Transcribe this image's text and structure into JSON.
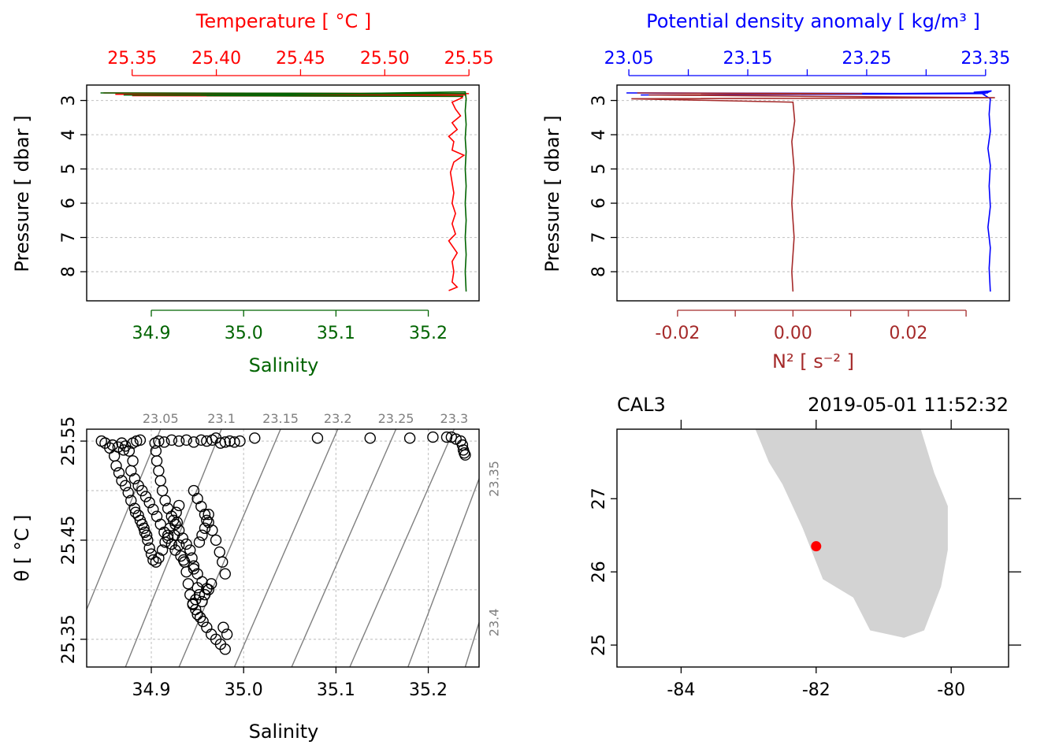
{
  "colors": {
    "temperature": "#ff0000",
    "salinity": "#006400",
    "density": "#0000ff",
    "n2": "#a52a2a",
    "axis": "#000000",
    "grid": "#c8c8c8",
    "isopycnal": "#7f7f7f",
    "land": "#d3d3d3",
    "station": "#ff0000"
  },
  "chart_data": [
    {
      "type": "line",
      "panel": "profile-ts",
      "title": "",
      "ylabel": "Pressure [ dbar ]",
      "ylim": [
        8.85,
        2.55
      ],
      "yticks": [
        3,
        4,
        5,
        6,
        7,
        8
      ],
      "grid": true,
      "top_axis": {
        "label": "Temperature [ °C ]",
        "ticks": [
          "25.35",
          "25.40",
          "25.45",
          "25.50",
          "25.55"
        ],
        "tick_values": [
          25.35,
          25.4,
          25.45,
          25.5,
          25.55
        ],
        "range": [
          25.323,
          25.556
        ]
      },
      "bottom_axis": {
        "label": "Salinity",
        "ticks": [
          "34.9",
          "35.0",
          "35.1",
          "35.2"
        ],
        "tick_values": [
          34.9,
          35.0,
          35.1,
          35.2
        ],
        "range": [
          34.83,
          35.255
        ]
      },
      "series": [
        {
          "variable": "temperature",
          "axis": "top",
          "points": [
            [
              25.333,
              2.78
            ],
            [
              25.55,
              2.8
            ],
            [
              25.34,
              2.82
            ],
            [
              25.548,
              2.84
            ],
            [
              25.35,
              2.86
            ],
            [
              25.545,
              2.88
            ],
            [
              25.546,
              2.92
            ],
            [
              25.54,
              3.05
            ],
            [
              25.542,
              3.25
            ],
            [
              25.545,
              3.45
            ],
            [
              25.54,
              3.65
            ],
            [
              25.543,
              3.85
            ],
            [
              25.538,
              4.05
            ],
            [
              25.541,
              4.2
            ],
            [
              25.54,
              4.45
            ],
            [
              25.547,
              4.6
            ],
            [
              25.541,
              4.8
            ],
            [
              25.539,
              5.1
            ],
            [
              25.54,
              5.4
            ],
            [
              25.541,
              5.7
            ],
            [
              25.54,
              6.0
            ],
            [
              25.542,
              6.3
            ],
            [
              25.54,
              6.6
            ],
            [
              25.542,
              6.9
            ],
            [
              25.538,
              7.1
            ],
            [
              25.543,
              7.45
            ],
            [
              25.54,
              7.7
            ],
            [
              25.541,
              8.0
            ],
            [
              25.54,
              8.3
            ],
            [
              25.543,
              8.45
            ],
            [
              25.538,
              8.55
            ]
          ]
        },
        {
          "variable": "salinity",
          "axis": "bottom",
          "points": [
            [
              34.845,
              2.78
            ],
            [
              35.24,
              2.8
            ],
            [
              34.87,
              2.84
            ],
            [
              35.238,
              2.88
            ],
            [
              34.96,
              2.86
            ],
            [
              35.24,
              2.75
            ],
            [
              35.241,
              2.95
            ],
            [
              35.24,
              3.3
            ],
            [
              35.241,
              3.7
            ],
            [
              35.24,
              4.1
            ],
            [
              35.241,
              4.5
            ],
            [
              35.24,
              5.0
            ],
            [
              35.241,
              5.5
            ],
            [
              35.24,
              6.0
            ],
            [
              35.241,
              6.5
            ],
            [
              35.24,
              7.0
            ],
            [
              35.241,
              7.5
            ],
            [
              35.24,
              8.0
            ],
            [
              35.241,
              8.58
            ]
          ]
        }
      ]
    },
    {
      "type": "line",
      "panel": "profile-density",
      "title": "",
      "ylabel": "Pressure [ dbar ]",
      "ylim": [
        8.85,
        2.55
      ],
      "yticks": [
        3,
        4,
        5,
        6,
        7,
        8
      ],
      "grid": true,
      "top_axis": {
        "label": "Potential density anomaly [ kg/m³ ]",
        "ticks": [
          "23.05",
          "23.15",
          "23.25",
          "23.35"
        ],
        "tick_values": [
          23.05,
          23.15,
          23.25,
          23.35
        ],
        "minor_tick_values": [
          23.1,
          23.2,
          23.3
        ],
        "range": [
          23.04,
          23.37
        ]
      },
      "bottom_axis": {
        "label": "N² [ s⁻² ]",
        "ticks": [
          "-0.02",
          "0.00",
          "0.02"
        ],
        "tick_values": [
          -0.02,
          0.0,
          0.02
        ],
        "minor_tick_values": [
          -0.01,
          0.01,
          0.03
        ],
        "range": [
          -0.0305,
          0.0375
        ]
      },
      "series": [
        {
          "variable": "density",
          "axis": "top",
          "points": [
            [
              23.048,
              2.78
            ],
            [
              23.35,
              2.8
            ],
            [
              23.06,
              2.84
            ],
            [
              23.352,
              2.78
            ],
            [
              23.34,
              2.76
            ],
            [
              23.355,
              2.72
            ],
            [
              23.348,
              2.82
            ],
            [
              23.354,
              2.95
            ],
            [
              23.353,
              3.4
            ],
            [
              23.354,
              3.9
            ],
            [
              23.352,
              4.4
            ],
            [
              23.354,
              4.9
            ],
            [
              23.353,
              5.5
            ],
            [
              23.354,
              6.1
            ],
            [
              23.352,
              6.7
            ],
            [
              23.354,
              7.3
            ],
            [
              23.353,
              7.9
            ],
            [
              23.354,
              8.58
            ]
          ]
        },
        {
          "variable": "n2",
          "axis": "bottom",
          "points": [
            [
              -0.027,
              2.78
            ],
            [
              0.012,
              2.8
            ],
            [
              -0.025,
              2.84
            ],
            [
              0.035,
              2.92
            ],
            [
              -0.028,
              2.95
            ],
            [
              0.0,
              3.05
            ],
            [
              0.0003,
              3.6
            ],
            [
              -0.0002,
              4.2
            ],
            [
              0.0002,
              5.0
            ],
            [
              -0.0002,
              6.0
            ],
            [
              0.0002,
              7.0
            ],
            [
              -0.0002,
              8.0
            ],
            [
              0.0,
              8.58
            ]
          ]
        }
      ]
    },
    {
      "type": "scatter",
      "panel": "ts-diagram",
      "title": "",
      "xlabel": "Salinity",
      "ylabel": "θ [ °C ]",
      "xlim": [
        34.83,
        35.255
      ],
      "ylim": [
        25.322,
        25.562
      ],
      "xticks": [
        "34.9",
        "35.0",
        "35.1",
        "35.2"
      ],
      "xtick_values": [
        34.9,
        35.0,
        35.1,
        35.2
      ],
      "yticks": [
        "25.35",
        "25.45",
        "25.55"
      ],
      "ytick_values": [
        25.35,
        25.45,
        25.55
      ],
      "grid_y_values": [
        25.35,
        25.4,
        25.45,
        25.5,
        25.55
      ],
      "grid": true,
      "isopycnals": [
        "23.05",
        "23.1",
        "23.15",
        "23.2",
        "23.25",
        "23.3",
        "23.35",
        "23.4"
      ],
      "isopycnal_lines": [
        [
          34.83,
          25.38,
          34.91,
          25.562
        ],
        [
          34.872,
          25.322,
          34.976,
          25.562
        ],
        [
          34.93,
          25.322,
          35.04,
          25.562
        ],
        [
          34.99,
          25.322,
          35.102,
          25.562
        ],
        [
          35.052,
          25.322,
          35.165,
          25.562
        ],
        [
          35.115,
          25.322,
          35.228,
          25.562
        ],
        [
          35.178,
          25.322,
          35.255,
          25.512
        ],
        [
          35.24,
          25.322,
          35.255,
          25.367
        ]
      ],
      "points": [
        [
          34.846,
          25.55
        ],
        [
          34.85,
          25.548
        ],
        [
          34.855,
          25.543
        ],
        [
          34.86,
          25.535
        ],
        [
          34.862,
          25.525
        ],
        [
          34.865,
          25.518
        ],
        [
          34.868,
          25.51
        ],
        [
          34.872,
          25.505
        ],
        [
          34.875,
          25.498
        ],
        [
          34.878,
          25.49
        ],
        [
          34.882,
          25.482
        ],
        [
          34.886,
          25.475
        ],
        [
          34.89,
          25.466
        ],
        [
          34.893,
          25.458
        ],
        [
          34.896,
          25.45
        ],
        [
          34.898,
          25.442
        ],
        [
          34.9,
          25.436
        ],
        [
          34.902,
          25.43
        ],
        [
          34.905,
          25.428
        ],
        [
          34.908,
          25.432
        ],
        [
          34.912,
          25.44
        ],
        [
          34.915,
          25.448
        ],
        [
          34.918,
          25.455
        ],
        [
          34.92,
          25.462
        ],
        [
          34.924,
          25.47
        ],
        [
          34.927,
          25.478
        ],
        [
          34.93,
          25.485
        ],
        [
          34.928,
          25.468
        ],
        [
          34.925,
          25.455
        ],
        [
          34.93,
          25.445
        ],
        [
          34.935,
          25.43
        ],
        [
          34.938,
          25.418
        ],
        [
          34.94,
          25.406
        ],
        [
          34.942,
          25.395
        ],
        [
          34.945,
          25.386
        ],
        [
          34.948,
          25.38
        ],
        [
          34.95,
          25.375
        ],
        [
          34.953,
          25.372
        ],
        [
          34.956,
          25.368
        ],
        [
          34.96,
          25.362
        ],
        [
          34.965,
          25.355
        ],
        [
          34.97,
          25.35
        ],
        [
          34.975,
          25.345
        ],
        [
          34.98,
          25.34
        ],
        [
          34.982,
          25.355
        ],
        [
          34.978,
          25.362
        ],
        [
          34.952,
          25.395
        ],
        [
          34.948,
          25.39
        ],
        [
          34.945,
          25.385
        ],
        [
          34.955,
          25.388
        ],
        [
          34.958,
          25.395
        ],
        [
          34.95,
          25.402
        ],
        [
          34.962,
          25.4
        ],
        [
          34.965,
          25.406
        ],
        [
          34.868,
          25.548
        ],
        [
          34.872,
          25.545
        ],
        [
          34.876,
          25.54
        ],
        [
          34.88,
          25.548
        ],
        [
          34.884,
          25.55
        ],
        [
          34.888,
          25.551
        ],
        [
          34.88,
          25.53
        ],
        [
          34.878,
          25.52
        ],
        [
          34.882,
          25.512
        ],
        [
          34.886,
          25.505
        ],
        [
          34.89,
          25.5
        ],
        [
          34.894,
          25.494
        ],
        [
          34.898,
          25.488
        ],
        [
          34.902,
          25.481
        ],
        [
          34.906,
          25.474
        ],
        [
          34.91,
          25.466
        ],
        [
          34.914,
          25.458
        ],
        [
          34.918,
          25.452
        ],
        [
          34.922,
          25.446
        ],
        [
          34.926,
          25.44
        ],
        [
          34.932,
          25.434
        ],
        [
          34.936,
          25.428
        ],
        [
          34.946,
          25.421
        ],
        [
          34.952,
          25.448
        ],
        [
          34.955,
          25.455
        ],
        [
          34.958,
          25.462
        ],
        [
          34.96,
          25.47
        ],
        [
          34.962,
          25.476
        ],
        [
          34.904,
          25.548
        ],
        [
          34.908,
          25.55
        ],
        [
          34.914,
          25.549
        ],
        [
          34.922,
          25.551
        ],
        [
          34.93,
          25.55
        ],
        [
          34.938,
          25.551
        ],
        [
          34.946,
          25.549
        ],
        [
          34.954,
          25.551
        ],
        [
          34.96,
          25.55
        ],
        [
          34.966,
          25.551
        ],
        [
          34.97,
          25.553
        ],
        [
          34.975,
          25.548
        ],
        [
          34.98,
          25.549
        ],
        [
          34.985,
          25.55
        ],
        [
          34.99,
          25.549
        ],
        [
          34.996,
          25.55
        ],
        [
          35.012,
          25.553
        ],
        [
          35.08,
          25.553
        ],
        [
          35.137,
          25.553
        ],
        [
          35.18,
          25.553
        ],
        [
          35.205,
          25.554
        ],
        [
          35.22,
          25.554
        ],
        [
          35.225,
          25.554
        ],
        [
          35.23,
          25.552
        ],
        [
          35.235,
          25.55
        ],
        [
          35.237,
          25.546
        ],
        [
          35.238,
          25.541
        ],
        [
          35.239,
          25.538
        ],
        [
          35.24,
          25.536
        ],
        [
          34.905,
          25.54
        ],
        [
          34.906,
          25.53
        ],
        [
          34.908,
          25.52
        ],
        [
          34.91,
          25.51
        ],
        [
          34.912,
          25.5
        ],
        [
          34.915,
          25.49
        ],
        [
          34.918,
          25.482
        ],
        [
          34.922,
          25.474
        ],
        [
          34.926,
          25.466
        ],
        [
          34.93,
          25.46
        ],
        [
          34.934,
          25.452
        ],
        [
          34.938,
          25.446
        ],
        [
          34.942,
          25.44
        ],
        [
          34.944,
          25.432
        ],
        [
          34.946,
          25.424
        ],
        [
          34.95,
          25.416
        ],
        [
          34.955,
          25.408
        ],
        [
          34.96,
          25.401
        ],
        [
          34.946,
          25.5
        ],
        [
          34.95,
          25.492
        ],
        [
          34.954,
          25.484
        ],
        [
          34.958,
          25.476
        ],
        [
          34.962,
          25.468
        ],
        [
          34.966,
          25.46
        ],
        [
          34.97,
          25.45
        ],
        [
          34.974,
          25.438
        ],
        [
          34.977,
          25.428
        ],
        [
          34.98,
          25.416
        ],
        [
          34.883,
          25.478
        ],
        [
          34.888,
          25.47
        ],
        [
          34.892,
          25.462
        ],
        [
          34.895,
          25.455
        ],
        [
          34.858,
          25.546
        ],
        [
          34.864,
          25.544
        ],
        [
          34.87,
          25.541
        ]
      ]
    },
    {
      "type": "scatter",
      "panel": "map",
      "title": "",
      "station_label": "CAL3",
      "time_label": "2019-05-01 11:52:32",
      "xticks": [
        "-84",
        "-82",
        "-80"
      ],
      "xtick_values": [
        -84,
        -82,
        -80
      ],
      "yticks": [
        "25",
        "26",
        "27"
      ],
      "ytick_values": [
        25,
        26,
        27
      ],
      "xlim": [
        -84.95,
        -79.15
      ],
      "ylim": [
        24.7,
        27.95
      ],
      "land_polygon": [
        [
          -82.9,
          27.95
        ],
        [
          -82.7,
          27.5
        ],
        [
          -82.5,
          27.2
        ],
        [
          -82.2,
          26.6
        ],
        [
          -81.9,
          25.9
        ],
        [
          -81.45,
          25.65
        ],
        [
          -81.2,
          25.2
        ],
        [
          -80.7,
          25.1
        ],
        [
          -80.4,
          25.2
        ],
        [
          -80.15,
          25.8
        ],
        [
          -80.05,
          26.3
        ],
        [
          -80.05,
          26.9
        ],
        [
          -80.25,
          27.35
        ],
        [
          -80.45,
          27.95
        ]
      ],
      "station": {
        "lon": -82.0,
        "lat": 26.35
      }
    }
  ]
}
